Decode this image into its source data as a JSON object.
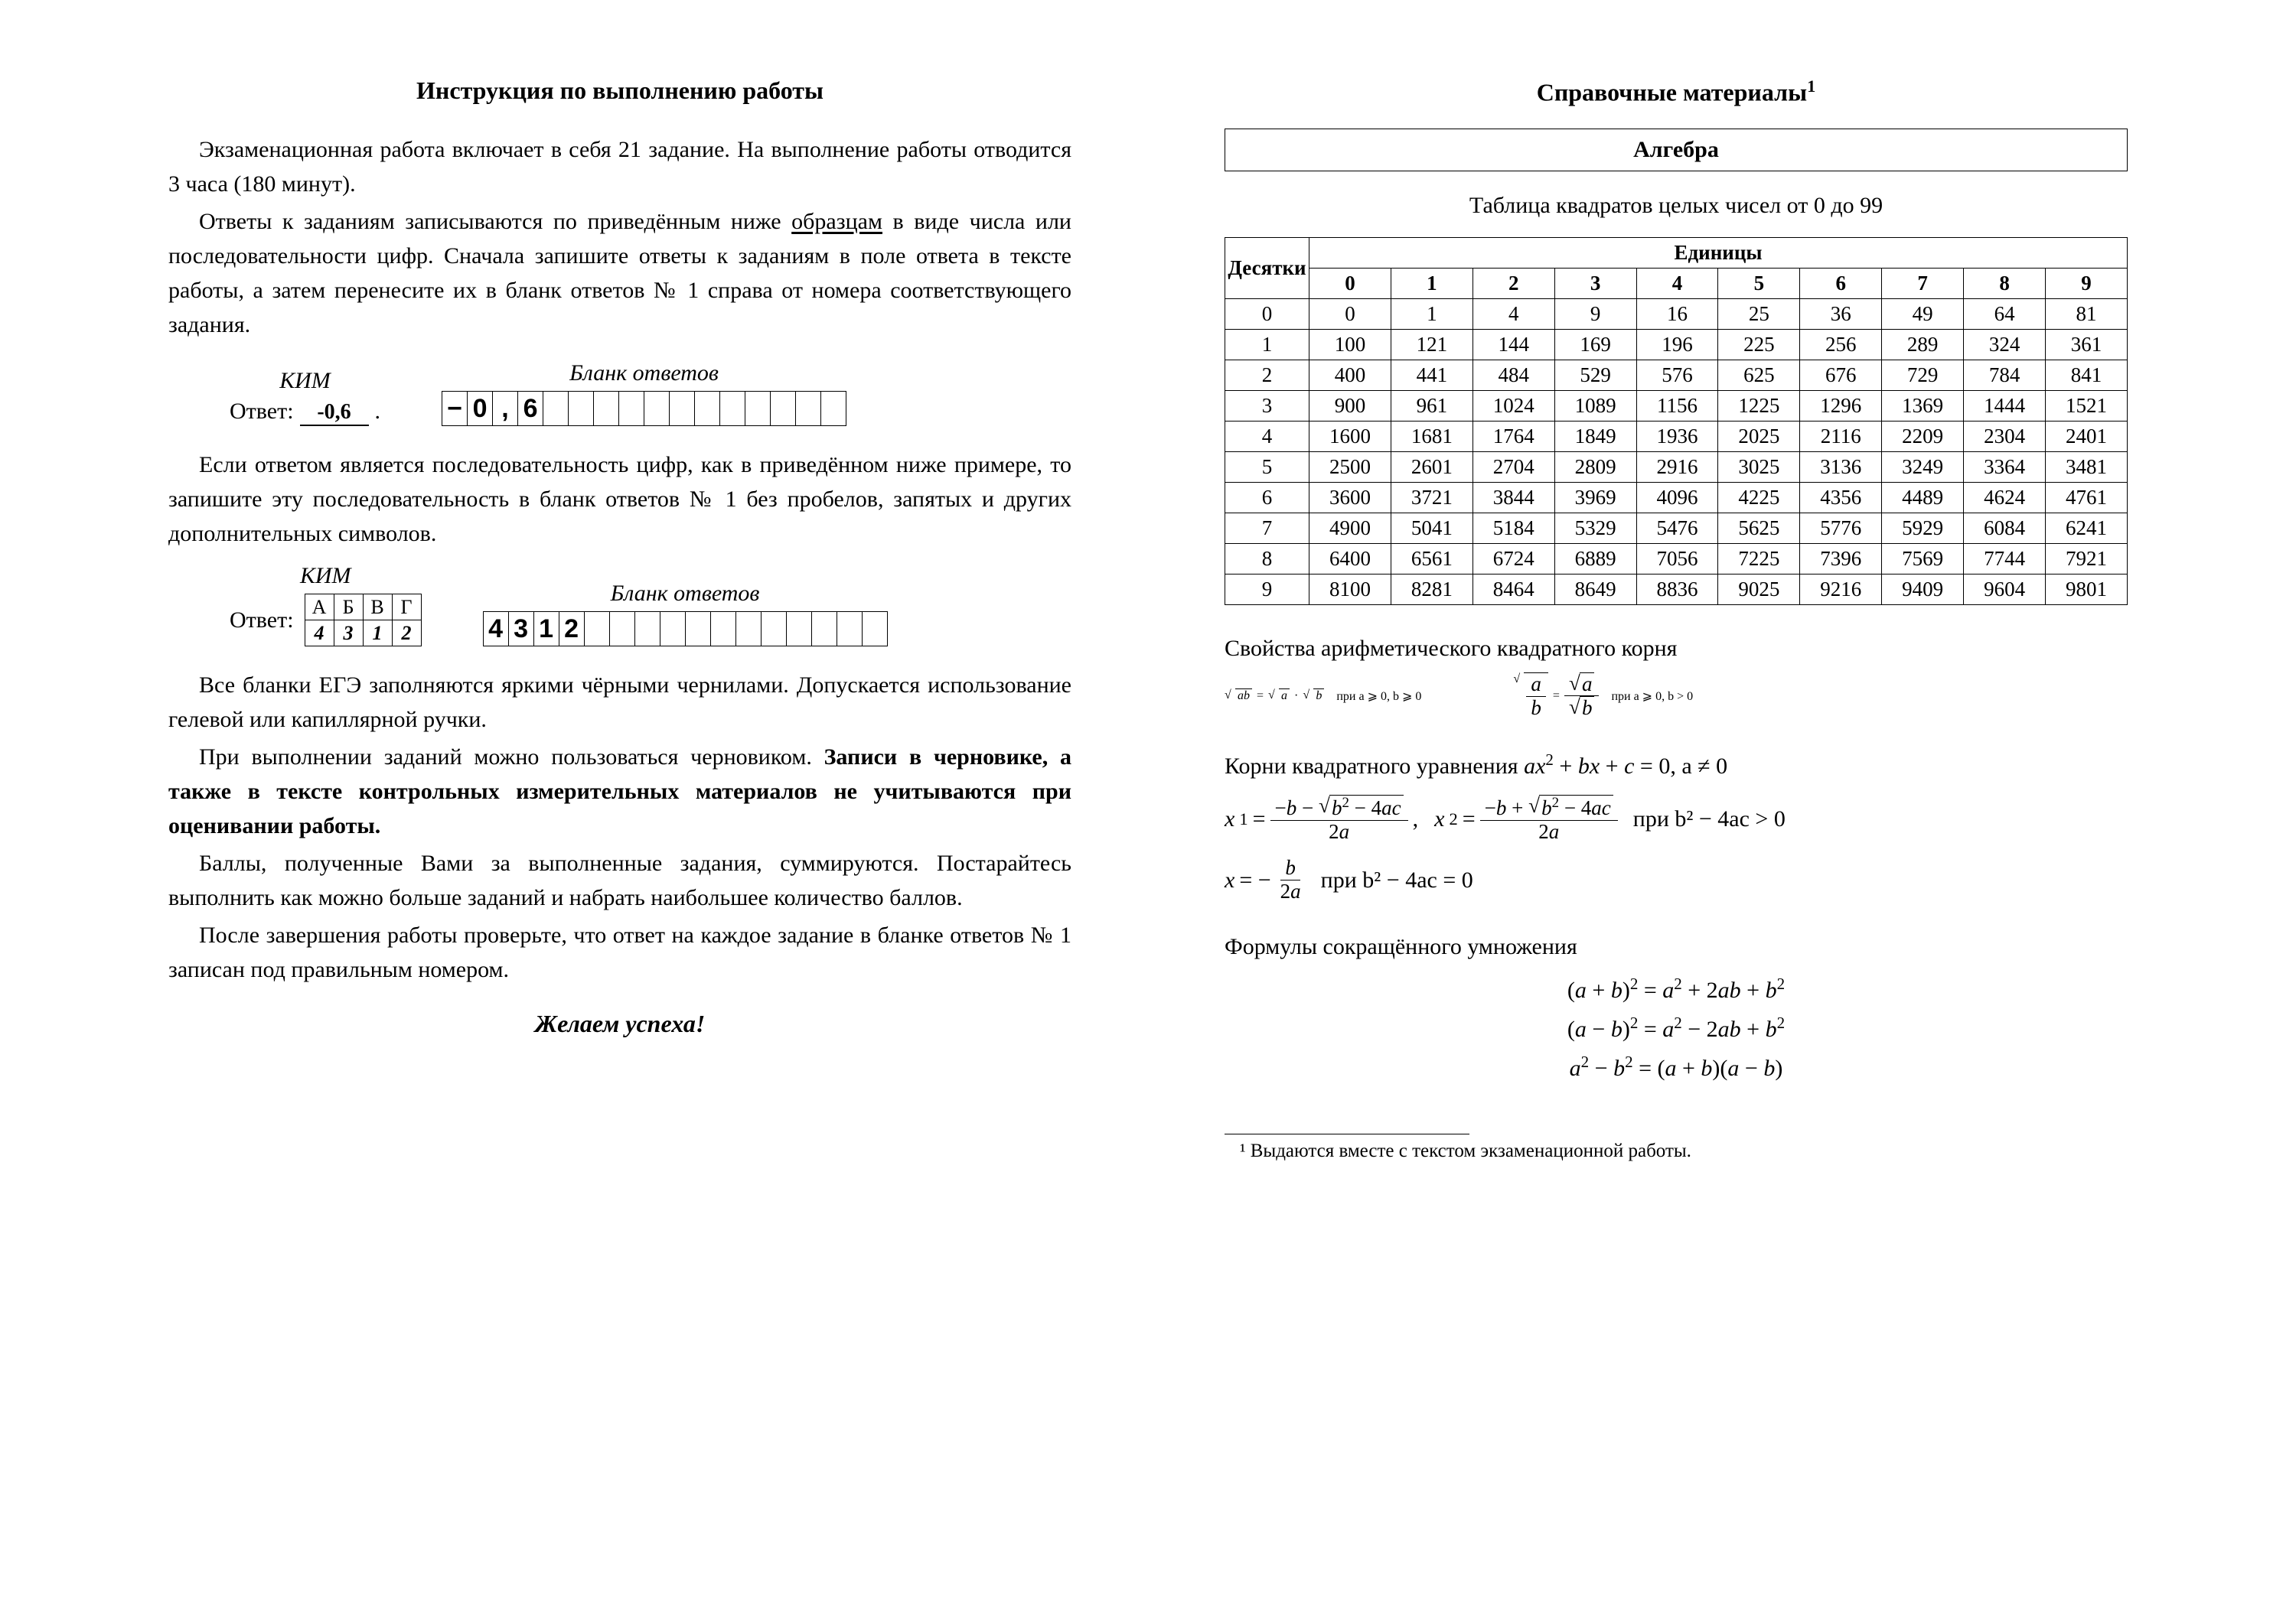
{
  "left": {
    "title": "Инструкция по выполнению работы",
    "p1": "Экзаменационная работа включает в себя 21 задание. На выполнение работы отводится 3 часа (180 минут).",
    "p2a": "Ответы к заданиям записываются по приведённым ниже ",
    "p2u": "образцам",
    "p2b": " в виде числа или последовательности цифр. Сначала запишите ответы к заданиям в поле ответа в тексте работы, а затем перенесите их в бланк ответов № 1 справа от номера соответствующего задания.",
    "ex1": {
      "kim_label": "КИМ",
      "blank_label": "Бланк ответов",
      "answer_prefix": "Ответ:",
      "answer_value": "-0,6",
      "blank_cells": [
        "−",
        "0",
        ",",
        "6",
        "",
        "",
        "",
        "",
        "",
        "",
        "",
        "",
        "",
        "",
        "",
        ""
      ]
    },
    "p3": "Если ответом является последовательность цифр, как в приведённом ниже примере, то запишите эту последовательность в бланк ответов № 1 без пробелов, запятых и других дополнительных символов.",
    "ex2": {
      "kim_label": "КИМ",
      "blank_label": "Бланк ответов",
      "answer_prefix": "Ответ:",
      "headers": [
        "А",
        "Б",
        "В",
        "Г"
      ],
      "values": [
        "4",
        "3",
        "1",
        "2"
      ],
      "blank_cells": [
        "4",
        "3",
        "1",
        "2",
        "",
        "",
        "",
        "",
        "",
        "",
        "",
        "",
        "",
        "",
        "",
        ""
      ]
    },
    "p4": "Все бланки ЕГЭ заполняются яркими чёрными чернилами. Допускается использование гелевой или капиллярной ручки.",
    "p5a": "При выполнении заданий можно пользоваться черновиком. ",
    "p5b": "Записи в черновике, а также в тексте контрольных измерительных материалов не учитываются при оценивании работы.",
    "p6": "Баллы, полученные Вами за выполненные задания, суммируются. Постарайтесь выполнить как можно больше заданий и набрать наибольшее количество баллов.",
    "p7": "После завершения работы проверьте, что ответ на каждое задание в бланке ответов № 1 записан под правильным номером.",
    "wish": "Желаем успеха!"
  },
  "right": {
    "title": "Справочные материалы",
    "section": "Алгебра",
    "table_caption": "Таблица квадратов целых чисел от 0 до 99",
    "tens_label": "Десятки",
    "units_label": "Единицы",
    "units": [
      "0",
      "1",
      "2",
      "3",
      "4",
      "5",
      "6",
      "7",
      "8",
      "9"
    ],
    "tens": [
      "0",
      "1",
      "2",
      "3",
      "4",
      "5",
      "6",
      "7",
      "8",
      "9"
    ],
    "squares": [
      [
        0,
        1,
        4,
        9,
        16,
        25,
        36,
        49,
        64,
        81
      ],
      [
        100,
        121,
        144,
        169,
        196,
        225,
        256,
        289,
        324,
        361
      ],
      [
        400,
        441,
        484,
        529,
        576,
        625,
        676,
        729,
        784,
        841
      ],
      [
        900,
        961,
        1024,
        1089,
        1156,
        1225,
        1296,
        1369,
        1444,
        1521
      ],
      [
        1600,
        1681,
        1764,
        1849,
        1936,
        2025,
        2116,
        2209,
        2304,
        2401
      ],
      [
        2500,
        2601,
        2704,
        2809,
        2916,
        3025,
        3136,
        3249,
        3364,
        3481
      ],
      [
        3600,
        3721,
        3844,
        3969,
        4096,
        4225,
        4356,
        4489,
        4624,
        4761
      ],
      [
        4900,
        5041,
        5184,
        5329,
        5476,
        5625,
        5776,
        5929,
        6084,
        6241
      ],
      [
        6400,
        6561,
        6724,
        6889,
        7056,
        7225,
        7396,
        7569,
        7744,
        7921
      ],
      [
        8100,
        8281,
        8464,
        8649,
        8836,
        9025,
        9216,
        9409,
        9604,
        9801
      ]
    ],
    "sqrt_title": "Свойства арифметического квадратного корня",
    "sqrt_cond1": "при  a ⩾ 0, b ⩾ 0",
    "sqrt_cond2": "при  a ⩾ 0, b > 0",
    "quad_title_a": "Корни квадратного уравнения ",
    "quad_title_b": ",  a ≠ 0",
    "quad_cond1": "при  b² − 4ac > 0",
    "quad_cond2": "при  b² − 4ac = 0",
    "mult_title": "Формулы сокращённого умножения",
    "mult1": "(a + b)² = a² + 2ab + b²",
    "mult2": "(a − b)² = a² − 2ab + b²",
    "mult3": "a² − b² = (a + b)(a − b)",
    "footnote": "¹ Выдаются вместе с текстом экзаменационной работы."
  }
}
